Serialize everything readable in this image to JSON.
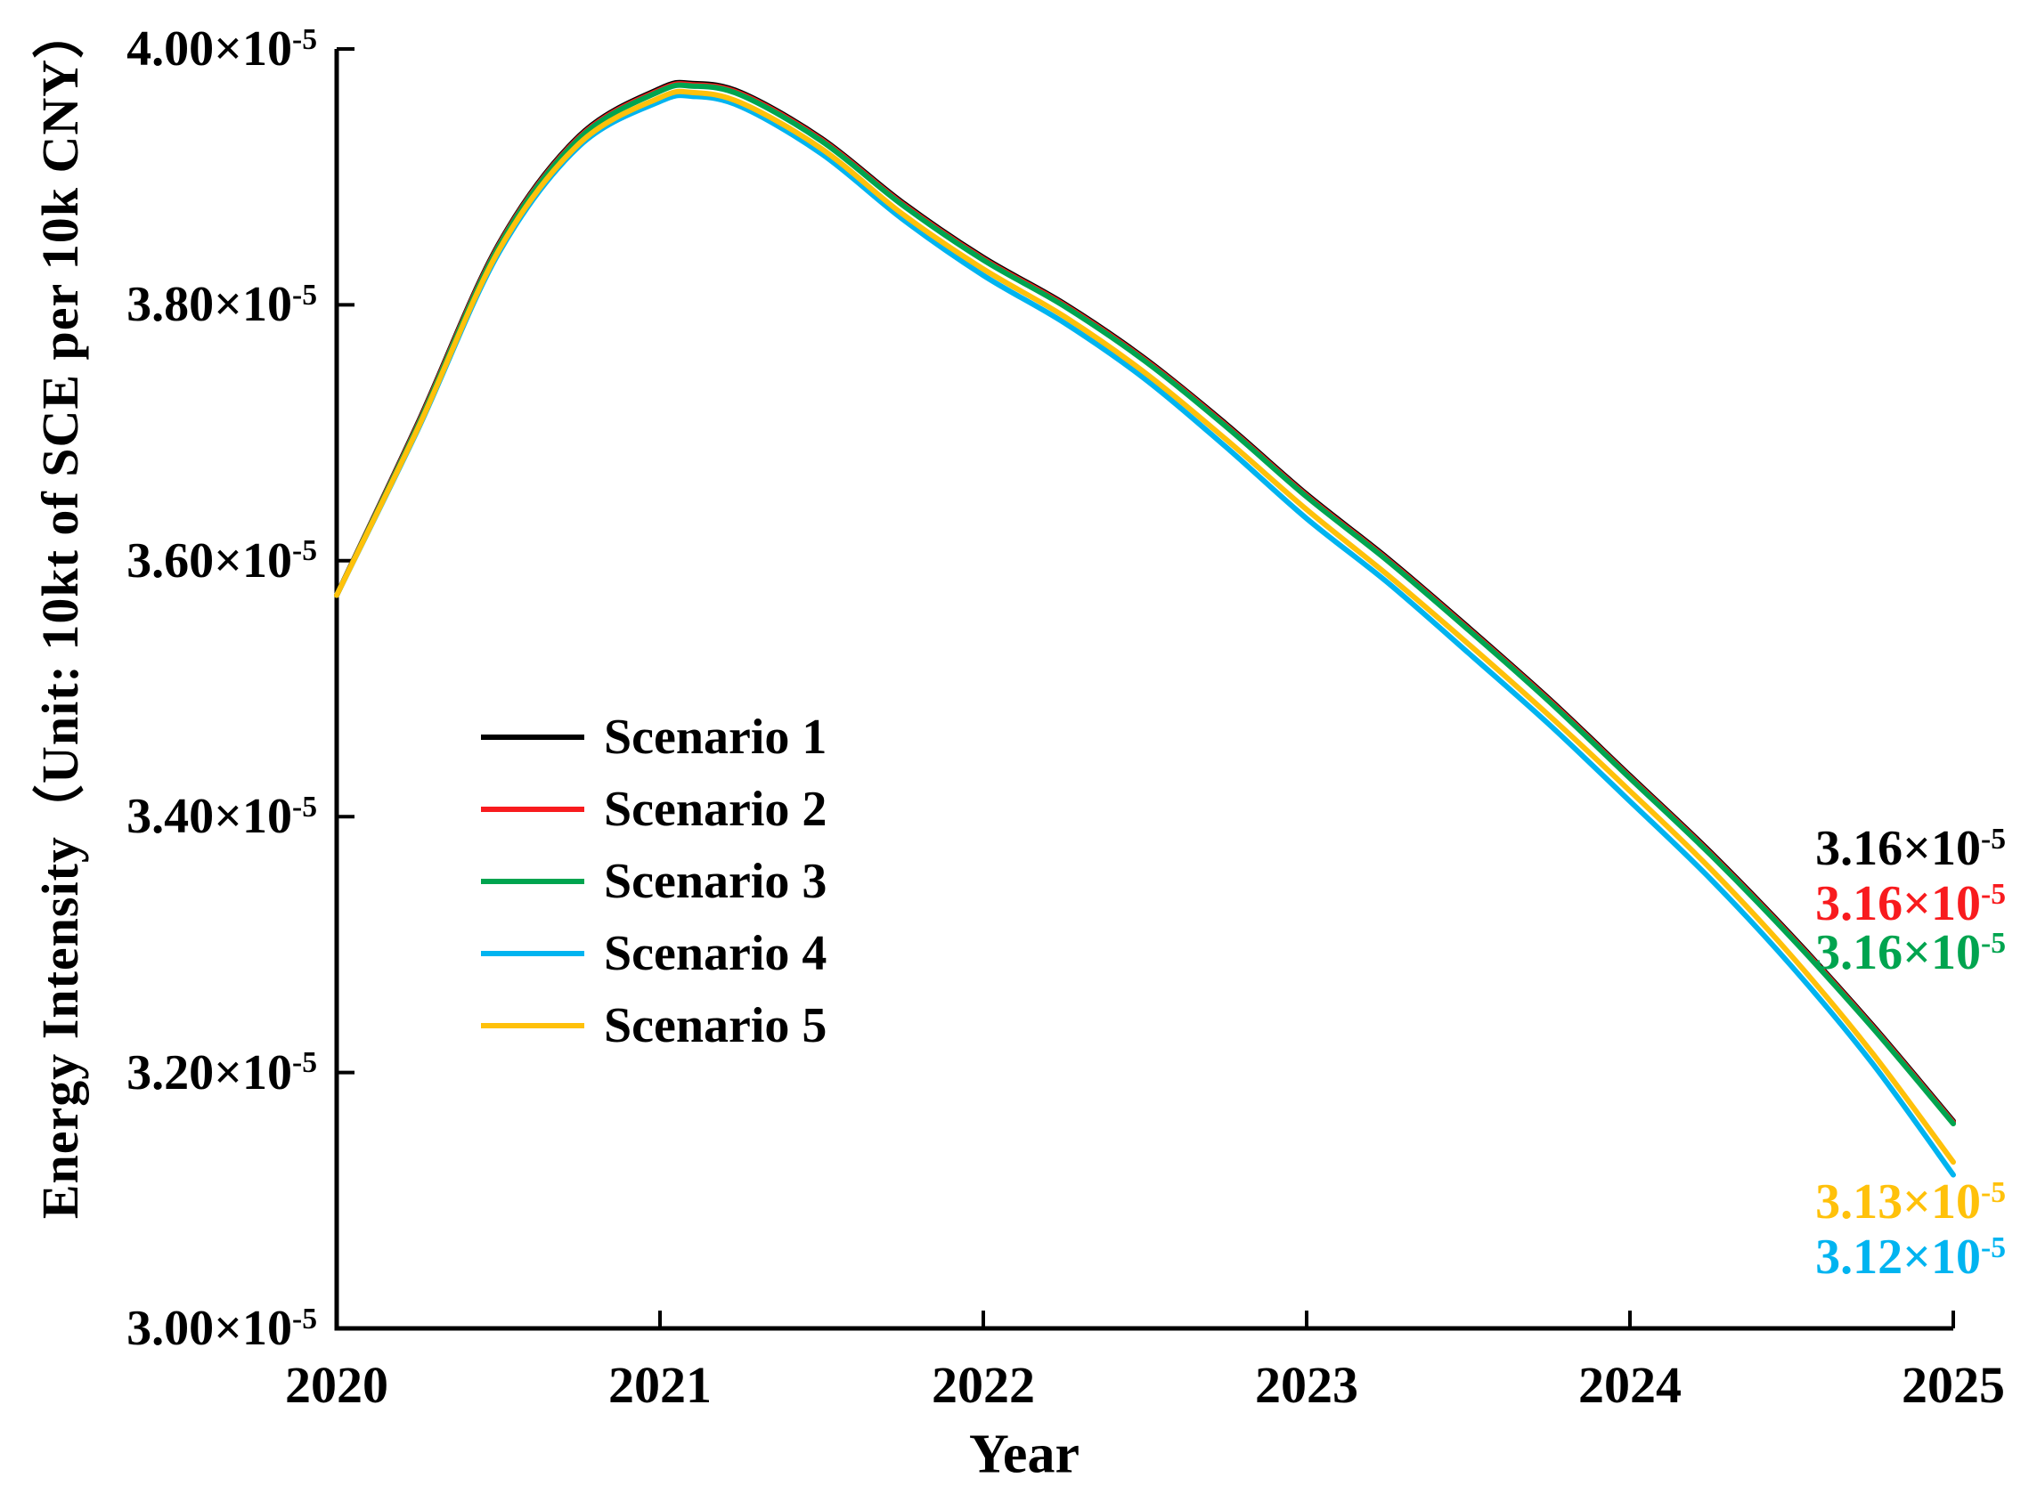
{
  "chart_data": {
    "type": "line",
    "title": "",
    "xlabel": "Year",
    "ylabel": "Energy Intensity（Unit: 10kt of SCE per 10k CNY）",
    "x_range": [
      2020,
      2025
    ],
    "y_range": [
      3e-05,
      4e-05
    ],
    "y_unit_exponent": "-5",
    "grid": "off",
    "legend_position": "center-left-inside",
    "x_ticks": [
      "2020",
      "2021",
      "2022",
      "2023",
      "2024",
      "2025"
    ],
    "y_ticks": [
      {
        "base": "4.00×10",
        "sup": "-5",
        "value": 4.0
      },
      {
        "base": "3.80×10",
        "sup": "-5",
        "value": 3.8
      },
      {
        "base": "3.60×10",
        "sup": "-5",
        "value": 3.6
      },
      {
        "base": "3.40×10",
        "sup": "-5",
        "value": 3.4
      },
      {
        "base": "3.20×10",
        "sup": "-5",
        "value": 3.2
      },
      {
        "base": "3.00×10",
        "sup": "-5",
        "value": 3.0
      }
    ],
    "x": [
      2020,
      2020.25,
      2020.5,
      2020.75,
      2021,
      2021.1,
      2021.25,
      2021.5,
      2021.75,
      2022,
      2022.25,
      2022.5,
      2022.75,
      2023,
      2023.25,
      2023.5,
      2023.75,
      2024,
      2024.25,
      2024.5,
      2024.75,
      2025
    ],
    "values_unit": "×10⁻⁵ (10kt of SCE per 10k CNY)",
    "series": [
      {
        "name": "Scenario 1",
        "color": "#000000",
        "values": [
          3.573,
          3.707,
          3.847,
          3.932,
          3.969,
          3.973,
          3.966,
          3.93,
          3.88,
          3.837,
          3.801,
          3.758,
          3.707,
          3.652,
          3.602,
          3.548,
          3.492,
          3.432,
          3.372,
          3.307,
          3.237,
          3.162
        ],
        "end_label": {
          "base": "3.16×10",
          "sup": "-5"
        }
      },
      {
        "name": "Scenario 2",
        "color": "#F81B1E",
        "values": [
          3.573,
          3.706,
          3.846,
          3.931,
          3.968,
          3.972,
          3.965,
          3.929,
          3.879,
          3.836,
          3.8,
          3.757,
          3.706,
          3.651,
          3.601,
          3.547,
          3.491,
          3.431,
          3.371,
          3.306,
          3.236,
          3.161
        ],
        "end_label": {
          "base": "3.16×10",
          "sup": "-5"
        }
      },
      {
        "name": "Scenario 3",
        "color": "#00A44F",
        "values": [
          3.573,
          3.705,
          3.845,
          3.93,
          3.967,
          3.971,
          3.964,
          3.928,
          3.878,
          3.835,
          3.799,
          3.756,
          3.705,
          3.65,
          3.6,
          3.546,
          3.49,
          3.43,
          3.37,
          3.305,
          3.235,
          3.16
        ],
        "end_label": {
          "base": "3.16×10",
          "sup": "-5"
        }
      },
      {
        "name": "Scenario 4",
        "color": "#00B4F0",
        "values": [
          3.573,
          3.702,
          3.84,
          3.924,
          3.959,
          3.963,
          3.955,
          3.918,
          3.867,
          3.823,
          3.786,
          3.742,
          3.689,
          3.633,
          3.583,
          3.528,
          3.472,
          3.412,
          3.351,
          3.283,
          3.207,
          3.12
        ],
        "end_label": {
          "base": "3.12×10",
          "sup": "-5"
        }
      },
      {
        "name": "Scenario 5",
        "color": "#FFC10A",
        "values": [
          3.573,
          3.703,
          3.842,
          3.926,
          3.962,
          3.966,
          3.958,
          3.922,
          3.871,
          3.828,
          3.791,
          3.747,
          3.695,
          3.64,
          3.589,
          3.535,
          3.479,
          3.42,
          3.359,
          3.291,
          3.215,
          3.13
        ],
        "end_label": {
          "base": "3.13×10",
          "sup": "-5"
        }
      }
    ]
  }
}
